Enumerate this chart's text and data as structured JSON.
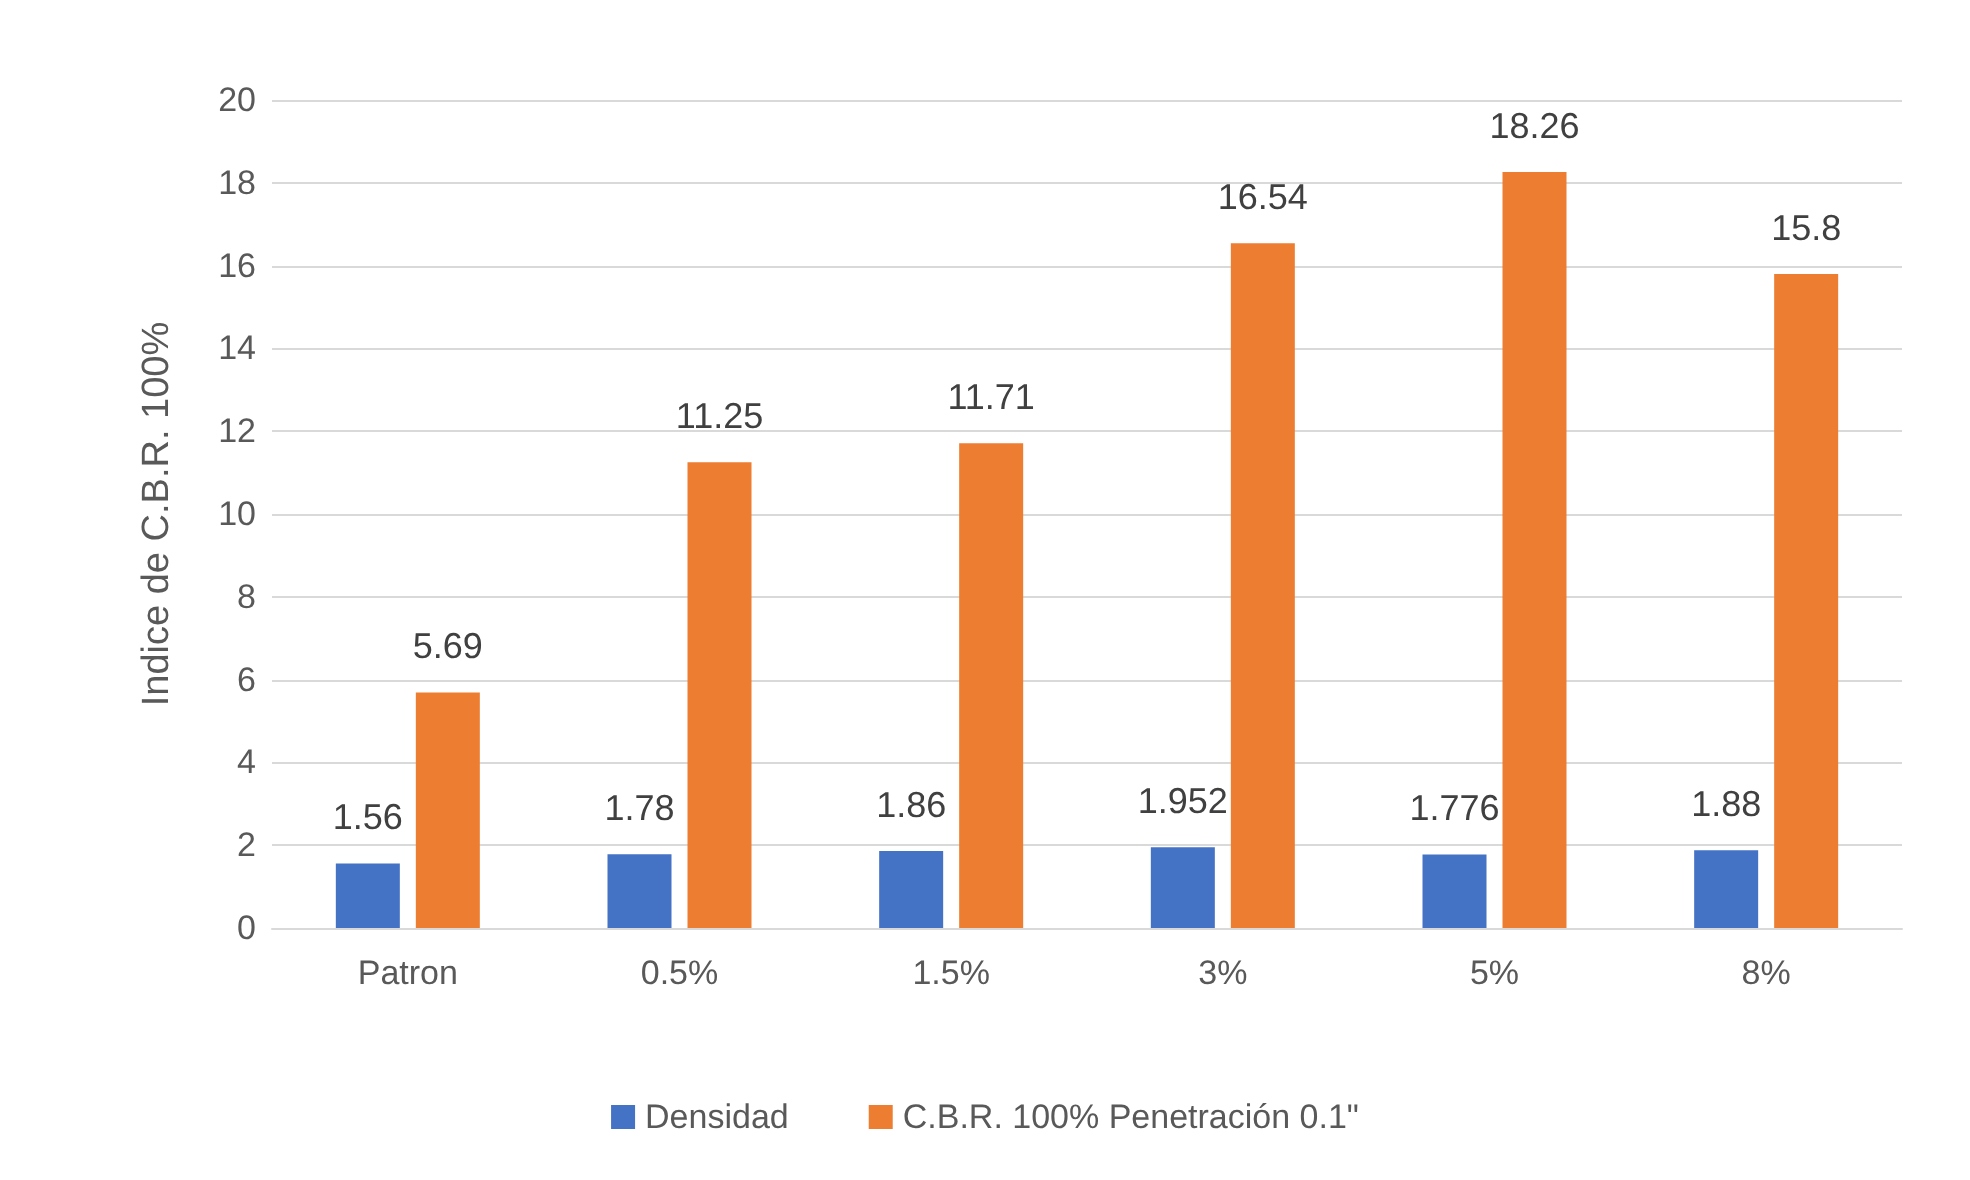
{
  "chart_data": {
    "type": "bar",
    "ylabel": "Indice de C.B.R. 100%",
    "categories": [
      "Patron",
      "0.5%",
      "1.5%",
      "3%",
      "5%",
      "8%"
    ],
    "series": [
      {
        "name": "Densidad",
        "color": "#4472c4",
        "values": [
          1.56,
          1.78,
          1.86,
          1.952,
          1.776,
          1.88
        ]
      },
      {
        "name": "C.B.R. 100% Penetración 0.1\"",
        "color": "#ed7d31",
        "values": [
          5.69,
          11.25,
          11.71,
          16.54,
          18.26,
          15.8
        ]
      }
    ],
    "ylim": [
      0,
      20
    ],
    "yticks": [
      0,
      2,
      4,
      6,
      8,
      10,
      12,
      14,
      16,
      18,
      20
    ],
    "grid": "y",
    "legend": "bottom",
    "data_labels": true
  }
}
